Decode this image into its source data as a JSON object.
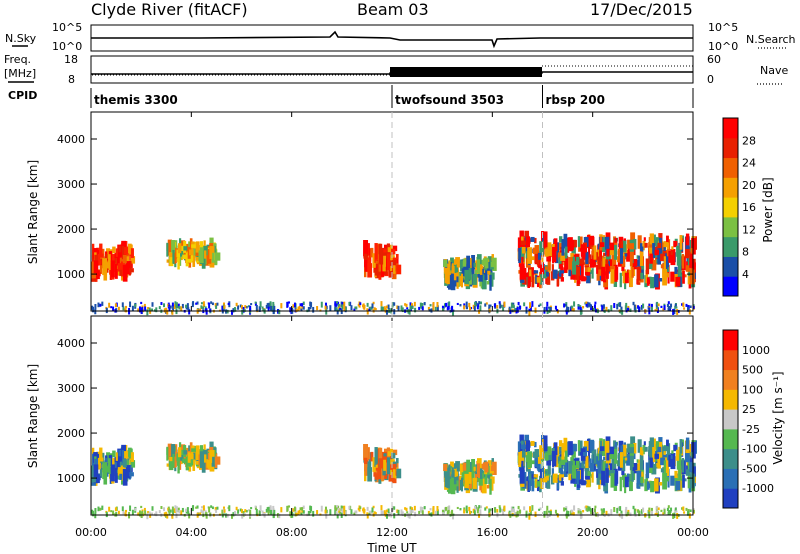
{
  "header": {
    "station": "Clyde River (fitACF)",
    "beam": "Beam 03",
    "date": "17/Dec/2015"
  },
  "status_panel": {
    "nsky_label": "N.Sky",
    "nsearch_label": "N.Search",
    "noise_ticks": [
      "10^5",
      "10^0"
    ],
    "freq_label_1": "Freq.",
    "freq_label_2": "[MHz]",
    "freq_ticks": [
      "18",
      "8"
    ],
    "nave_label": "Nave",
    "nave_ticks": [
      "60",
      "0"
    ],
    "cpid_label": "CPID"
  },
  "cpid_segments": [
    {
      "name": "themis 3300",
      "start_hour": 0,
      "end_hour": 12
    },
    {
      "name": "twofsound 3503",
      "start_hour": 12,
      "end_hour": 18
    },
    {
      "name": "rbsp 200",
      "start_hour": 18,
      "end_hour": 24
    }
  ],
  "chart_data": [
    {
      "type": "heatmap",
      "parameter": "Power",
      "ylabel": "Slant Range [km]",
      "ylim": [
        180,
        4600
      ],
      "yticks": [
        "4000",
        "3000",
        "2000",
        "1000"
      ],
      "xlim_hours": [
        0,
        24
      ],
      "colorbar": {
        "label": "Power [dB]",
        "ticks": [
          "28",
          "24",
          "20",
          "16",
          "12",
          "8",
          "4"
        ],
        "colors": [
          "#0000ff",
          "#1a4fa8",
          "#3a9a6a",
          "#7bc043",
          "#f4d000",
          "#f5a000",
          "#f06000",
          "#e82000",
          "#ff0000"
        ]
      },
      "scatter_regions": [
        {
          "start_hour": 0.0,
          "end_hour": 1.6,
          "range_low_km": 850,
          "range_high_km": 1700,
          "dominant": "red-orange"
        },
        {
          "start_hour": 3.0,
          "end_hour": 5.0,
          "range_low_km": 1200,
          "range_high_km": 1700,
          "dominant": "orange-green"
        },
        {
          "start_hour": 10.8,
          "end_hour": 12.2,
          "range_low_km": 900,
          "range_high_km": 1700,
          "dominant": "red-orange"
        },
        {
          "start_hour": 14.0,
          "end_hour": 16.0,
          "range_low_km": 700,
          "range_high_km": 1400,
          "dominant": "green-orange"
        },
        {
          "start_hour": 17.0,
          "end_hour": 24.0,
          "range_low_km": 600,
          "range_high_km": 2000,
          "dominant": "red"
        }
      ],
      "ground_scatter_hours": [
        0,
        24
      ]
    },
    {
      "type": "heatmap",
      "parameter": "Velocity",
      "ylabel": "Slant Range [km]",
      "ylim": [
        180,
        4600
      ],
      "yticks": [
        "4000",
        "3000",
        "2000",
        "1000"
      ],
      "xlim_hours": [
        0,
        24
      ],
      "xticks": [
        "00:00",
        "04:00",
        "08:00",
        "12:00",
        "16:00",
        "20:00",
        "00:00"
      ],
      "xlabel": "Time UT",
      "colorbar": {
        "label": "Velocity [m s⁻¹]",
        "ticks": [
          "1000",
          "500",
          "100",
          "25",
          "-25",
          "-100",
          "-500",
          "-1000"
        ],
        "colors": [
          "#2040c0",
          "#2a6fb5",
          "#3c8e8a",
          "#55b850",
          "#c8c8c8",
          "#f5b800",
          "#f08020",
          "#f05010",
          "#ff0000"
        ]
      },
      "scatter_regions": [
        {
          "start_hour": 0.0,
          "end_hour": 1.6,
          "range_low_km": 850,
          "range_high_km": 1700,
          "dominant": "blue-green"
        },
        {
          "start_hour": 3.0,
          "end_hour": 5.0,
          "range_low_km": 1200,
          "range_high_km": 1700,
          "dominant": "orange-green"
        },
        {
          "start_hour": 10.8,
          "end_hour": 12.2,
          "range_low_km": 900,
          "range_high_km": 1700,
          "dominant": "orange"
        },
        {
          "start_hour": 14.0,
          "end_hour": 16.0,
          "range_low_km": 700,
          "range_high_km": 1400,
          "dominant": "orange-green"
        },
        {
          "start_hour": 17.0,
          "end_hour": 24.0,
          "range_low_km": 600,
          "range_high_km": 2000,
          "dominant": "blue-green"
        }
      ],
      "ground_scatter_hours": [
        0,
        24
      ]
    }
  ]
}
